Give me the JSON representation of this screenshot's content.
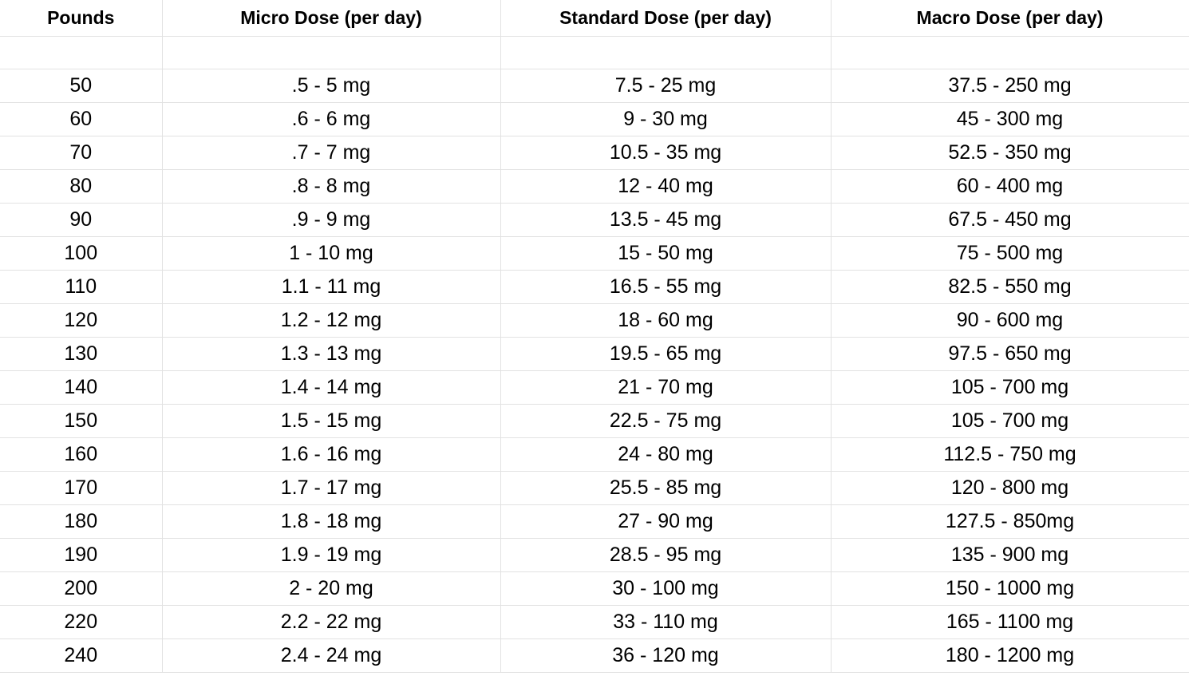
{
  "table": {
    "headers": [
      "Pounds",
      "Micro Dose (per day)",
      "Standard Dose (per day)",
      "Macro Dose (per day)"
    ],
    "rows": [
      [
        "50",
        ".5 - 5 mg",
        "7.5 - 25 mg",
        "37.5 - 250 mg"
      ],
      [
        "60",
        ".6 - 6 mg",
        "9 - 30 mg",
        "45 - 300 mg"
      ],
      [
        "70",
        ".7 - 7 mg",
        "10.5 - 35 mg",
        "52.5 - 350 mg"
      ],
      [
        "80",
        ".8 - 8 mg",
        "12 - 40 mg",
        "60 - 400 mg"
      ],
      [
        "90",
        ".9 - 9 mg",
        "13.5 - 45 mg",
        "67.5 - 450 mg"
      ],
      [
        "100",
        "1 - 10 mg",
        "15 - 50 mg",
        "75 - 500 mg"
      ],
      [
        "110",
        "1.1 - 11 mg",
        "16.5 - 55 mg",
        "82.5 - 550 mg"
      ],
      [
        "120",
        "1.2 - 12 mg",
        "18 - 60 mg",
        "90 - 600 mg"
      ],
      [
        "130",
        "1.3 - 13 mg",
        "19.5 - 65 mg",
        "97.5 - 650 mg"
      ],
      [
        "140",
        "1.4 - 14 mg",
        "21 - 70 mg",
        "105 - 700 mg"
      ],
      [
        "150",
        "1.5 - 15 mg",
        "22.5 - 75 mg",
        "105 - 700 mg"
      ],
      [
        "160",
        "1.6 - 16 mg",
        "24 - 80 mg",
        "112.5 - 750 mg"
      ],
      [
        "170",
        "1.7 - 17 mg",
        "25.5 - 85 mg",
        "120 - 800 mg"
      ],
      [
        "180",
        "1.8 - 18 mg",
        "27 - 90 mg",
        "127.5 - 850mg"
      ],
      [
        "190",
        "1.9 - 19 mg",
        "28.5 - 95 mg",
        "135 - 900 mg"
      ],
      [
        "200",
        "2 - 20 mg",
        "30 - 100 mg",
        "150 - 1000 mg"
      ],
      [
        "220",
        "2.2 - 22 mg",
        "33 - 110 mg",
        "165 - 1100 mg"
      ],
      [
        "240",
        "2.4 - 24 mg",
        "36 - 120 mg",
        "180 - 1200 mg"
      ]
    ]
  },
  "colors": {
    "gridline": "#e2e2e2",
    "text": "#000000",
    "background": "#ffffff"
  }
}
